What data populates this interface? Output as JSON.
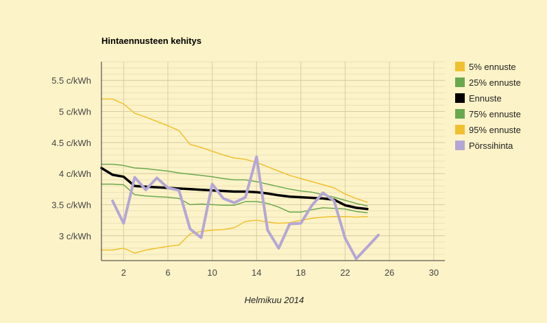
{
  "chart_data": {
    "type": "line",
    "title": "Hintaennusteen kehitys",
    "xlabel": "Helmikuu 2014",
    "ylabel": "",
    "xlim": [
      0,
      31
    ],
    "ylim": [
      2.6,
      5.8
    ],
    "x_ticks": [
      2,
      6,
      10,
      14,
      18,
      22,
      26,
      30
    ],
    "y_ticks": [
      {
        "value": 3.0,
        "label": "3 c/kWh"
      },
      {
        "value": 3.5,
        "label": "3.5 c/kWh"
      },
      {
        "value": 4.0,
        "label": "4 c/kWh"
      },
      {
        "value": 4.5,
        "label": "4.5 c/kWh"
      },
      {
        "value": 5.0,
        "label": "5 c/kWh"
      },
      {
        "value": 5.5,
        "label": "5.5 c/kWh"
      }
    ],
    "grid": true,
    "legend_position": "right",
    "series": [
      {
        "name": "5% ennuste",
        "color": "#f0c030",
        "width": 1.5,
        "x": [
          0,
          1,
          2,
          3,
          4,
          5,
          6,
          7,
          8,
          9,
          10,
          11,
          12,
          13,
          14,
          15,
          16,
          17,
          18,
          19,
          20,
          21,
          22,
          23,
          24
        ],
        "y": [
          2.77,
          2.77,
          2.8,
          2.72,
          2.77,
          2.8,
          2.83,
          2.85,
          3.03,
          3.07,
          3.09,
          3.1,
          3.13,
          3.23,
          3.25,
          3.22,
          3.2,
          3.21,
          3.25,
          3.28,
          3.3,
          3.31,
          3.31,
          3.3,
          3.31
        ]
      },
      {
        "name": "25% ennuste",
        "color": "#6aa84f",
        "width": 1.5,
        "x": [
          0,
          1,
          2,
          3,
          4,
          5,
          6,
          7,
          8,
          9,
          10,
          11,
          12,
          13,
          14,
          15,
          16,
          17,
          18,
          19,
          20,
          21,
          22,
          23,
          24
        ],
        "y": [
          3.83,
          3.83,
          3.82,
          3.66,
          3.64,
          3.63,
          3.62,
          3.6,
          3.5,
          3.51,
          3.5,
          3.49,
          3.49,
          3.55,
          3.55,
          3.52,
          3.46,
          3.38,
          3.38,
          3.42,
          3.45,
          3.44,
          3.43,
          3.39,
          3.37
        ]
      },
      {
        "name": "Ennuste",
        "color": "#000000",
        "width": 3.5,
        "x": [
          0,
          1,
          2,
          3,
          4,
          5,
          6,
          7,
          8,
          9,
          10,
          11,
          12,
          13,
          14,
          15,
          16,
          17,
          18,
          19,
          20,
          21,
          22,
          23,
          24
        ],
        "y": [
          4.09,
          3.98,
          3.95,
          3.8,
          3.79,
          3.78,
          3.77,
          3.76,
          3.75,
          3.74,
          3.73,
          3.72,
          3.71,
          3.71,
          3.7,
          3.68,
          3.65,
          3.63,
          3.62,
          3.61,
          3.6,
          3.58,
          3.49,
          3.45,
          3.43
        ]
      },
      {
        "name": "75% ennuste",
        "color": "#6aa84f",
        "width": 1.5,
        "x": [
          0,
          1,
          2,
          3,
          4,
          5,
          6,
          7,
          8,
          9,
          10,
          11,
          12,
          13,
          14,
          15,
          16,
          17,
          18,
          19,
          20,
          21,
          22,
          23,
          24
        ],
        "y": [
          4.15,
          4.15,
          4.13,
          4.09,
          4.08,
          4.06,
          4.04,
          4.01,
          3.99,
          3.97,
          3.95,
          3.92,
          3.9,
          3.9,
          3.87,
          3.83,
          3.79,
          3.75,
          3.72,
          3.7,
          3.66,
          3.62,
          3.57,
          3.52,
          3.48
        ]
      },
      {
        "name": "95% ennuste",
        "color": "#f0c030",
        "width": 1.5,
        "x": [
          0,
          1,
          2,
          3,
          4,
          5,
          6,
          7,
          8,
          9,
          10,
          11,
          12,
          13,
          14,
          15,
          16,
          17,
          18,
          19,
          20,
          21,
          22,
          23,
          24
        ],
        "y": [
          5.2,
          5.2,
          5.12,
          4.97,
          4.91,
          4.84,
          4.77,
          4.69,
          4.47,
          4.42,
          4.36,
          4.3,
          4.25,
          4.23,
          4.18,
          4.11,
          4.04,
          3.97,
          3.92,
          3.87,
          3.82,
          3.77,
          3.67,
          3.6,
          3.54
        ]
      },
      {
        "name": "Pörssihinta",
        "color": "#b4a7d6",
        "width": 4,
        "x": [
          1,
          2,
          3,
          4,
          5,
          6,
          7,
          8,
          9,
          10,
          11,
          12,
          13,
          14,
          15,
          16,
          17,
          18,
          19,
          20,
          21,
          22,
          23,
          24,
          25
        ],
        "y": [
          3.56,
          3.2,
          3.94,
          3.74,
          3.93,
          3.77,
          3.73,
          3.11,
          2.97,
          3.83,
          3.6,
          3.53,
          3.62,
          4.27,
          3.09,
          2.8,
          3.19,
          3.2,
          3.49,
          3.69,
          3.56,
          2.96,
          2.63,
          2.82,
          3.01
        ]
      }
    ]
  }
}
